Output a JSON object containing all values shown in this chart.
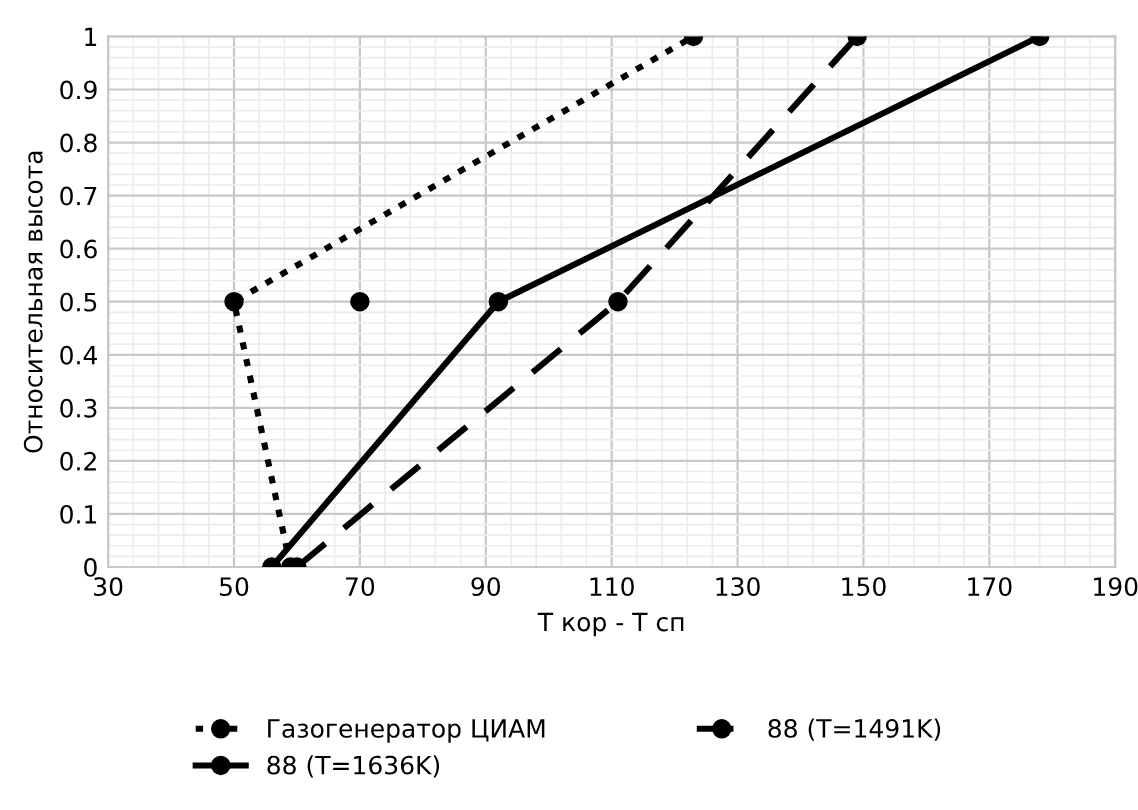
{
  "chart_data": {
    "type": "line",
    "xlabel": "Т кор - Т сп",
    "ylabel": "Относительная высота",
    "xlim": [
      30,
      190
    ],
    "xticks": [
      30,
      50,
      70,
      90,
      110,
      130,
      150,
      170,
      190
    ],
    "ylim": [
      0,
      1
    ],
    "yticks": [
      0,
      0.1,
      0.2,
      0.3,
      0.4,
      0.5,
      0.6,
      0.7,
      0.8,
      0.9,
      1
    ],
    "grid": true,
    "legend": "bottom",
    "marker": "circle",
    "series": [
      {
        "name": "Газогенератор ЦИАМ",
        "color": "#000000",
        "line_style": "dotted",
        "x": [
          59,
          50,
          123
        ],
        "values": [
          0,
          0.5,
          1
        ]
      },
      {
        "name": "88 (T=1636K)",
        "color": "#000000",
        "line_style": "solid",
        "x": [
          56,
          92,
          178
        ],
        "values": [
          0,
          0.5,
          1
        ]
      },
      {
        "name": "88 (T=1491K)",
        "color": "#000000",
        "line_style": "dashed",
        "x": [
          60,
          111,
          149
        ],
        "values": [
          0,
          0.5,
          1
        ]
      },
      {
        "type": "scatter",
        "color": "#000000",
        "x": [
          70
        ],
        "values": [
          0.5
        ]
      }
    ]
  }
}
